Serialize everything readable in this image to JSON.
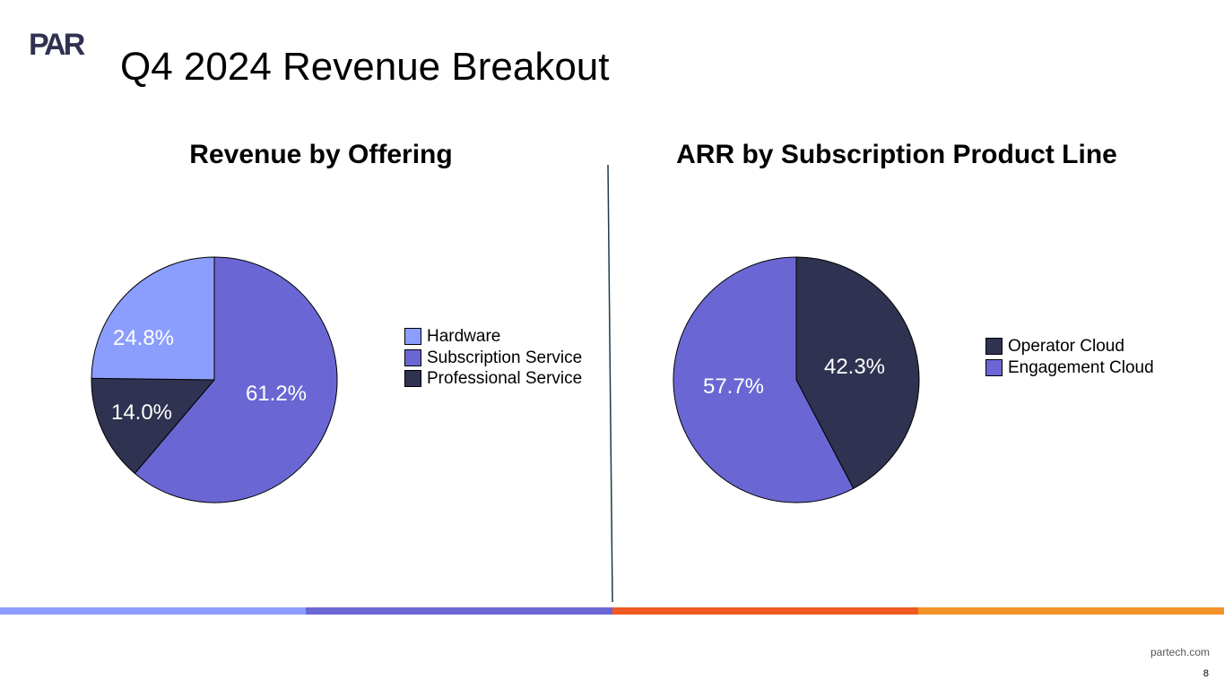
{
  "slide": {
    "title": "Q4 2024 Revenue Breakout",
    "website": "partech.com",
    "page_number": "8",
    "logo_text": "PAR"
  },
  "colors": {
    "light_blue": "#8c9efd",
    "purple": "#6a67d4",
    "navy": "#2f3250",
    "orange_red": "#f05a22",
    "orange": "#f29228",
    "divider": "#1f3a4a"
  },
  "chart_data": [
    {
      "type": "pie",
      "title": "Revenue by Offering",
      "categories": [
        "Hardware",
        "Subscription Service",
        "Professional Service"
      ],
      "values": [
        24.8,
        61.2,
        14.0
      ],
      "labels": [
        "24.8%",
        "61.2%",
        "14.0%"
      ],
      "colors": [
        "#8c9efd",
        "#6a67d4",
        "#2f3250"
      ],
      "label_colors": [
        "#ffffff",
        "#ffffff",
        "#ffffff"
      ],
      "legend": "right"
    },
    {
      "type": "pie",
      "title": "ARR by Subscription Product Line",
      "categories": [
        "Operator Cloud",
        "Engagement Cloud"
      ],
      "values": [
        42.3,
        57.7
      ],
      "labels": [
        "42.3%",
        "57.7%"
      ],
      "colors": [
        "#2f3250",
        "#6a67d4"
      ],
      "label_colors": [
        "#ffffff",
        "#ffffff"
      ],
      "legend": "right"
    }
  ]
}
